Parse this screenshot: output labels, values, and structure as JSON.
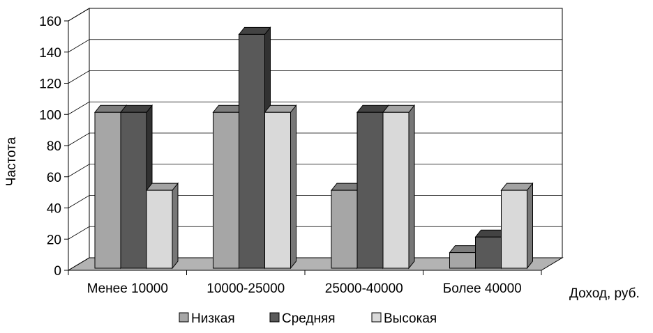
{
  "chart_data": {
    "type": "bar",
    "style": "3d-clustered-column",
    "ylabel": "Частота",
    "xlabel": "Доход, руб.",
    "ylim": [
      0,
      160
    ],
    "y_ticks": [
      "0",
      "20",
      "40",
      "60",
      "80",
      "100",
      "120",
      "140",
      "160"
    ],
    "grid": true,
    "legend_position": "bottom",
    "categories": [
      "Менее 10000",
      "10000-25000",
      "25000-40000",
      "Более 40000"
    ],
    "series": [
      {
        "name": "Низкая",
        "color": "#a6a6a6",
        "values": [
          100,
          100,
          50,
          10
        ]
      },
      {
        "name": "Средняя",
        "color": "#595959",
        "values": [
          100,
          150,
          100,
          20
        ]
      },
      {
        "name": "Высокая",
        "color": "#d9d9d9",
        "values": [
          50,
          100,
          100,
          50
        ]
      }
    ]
  }
}
